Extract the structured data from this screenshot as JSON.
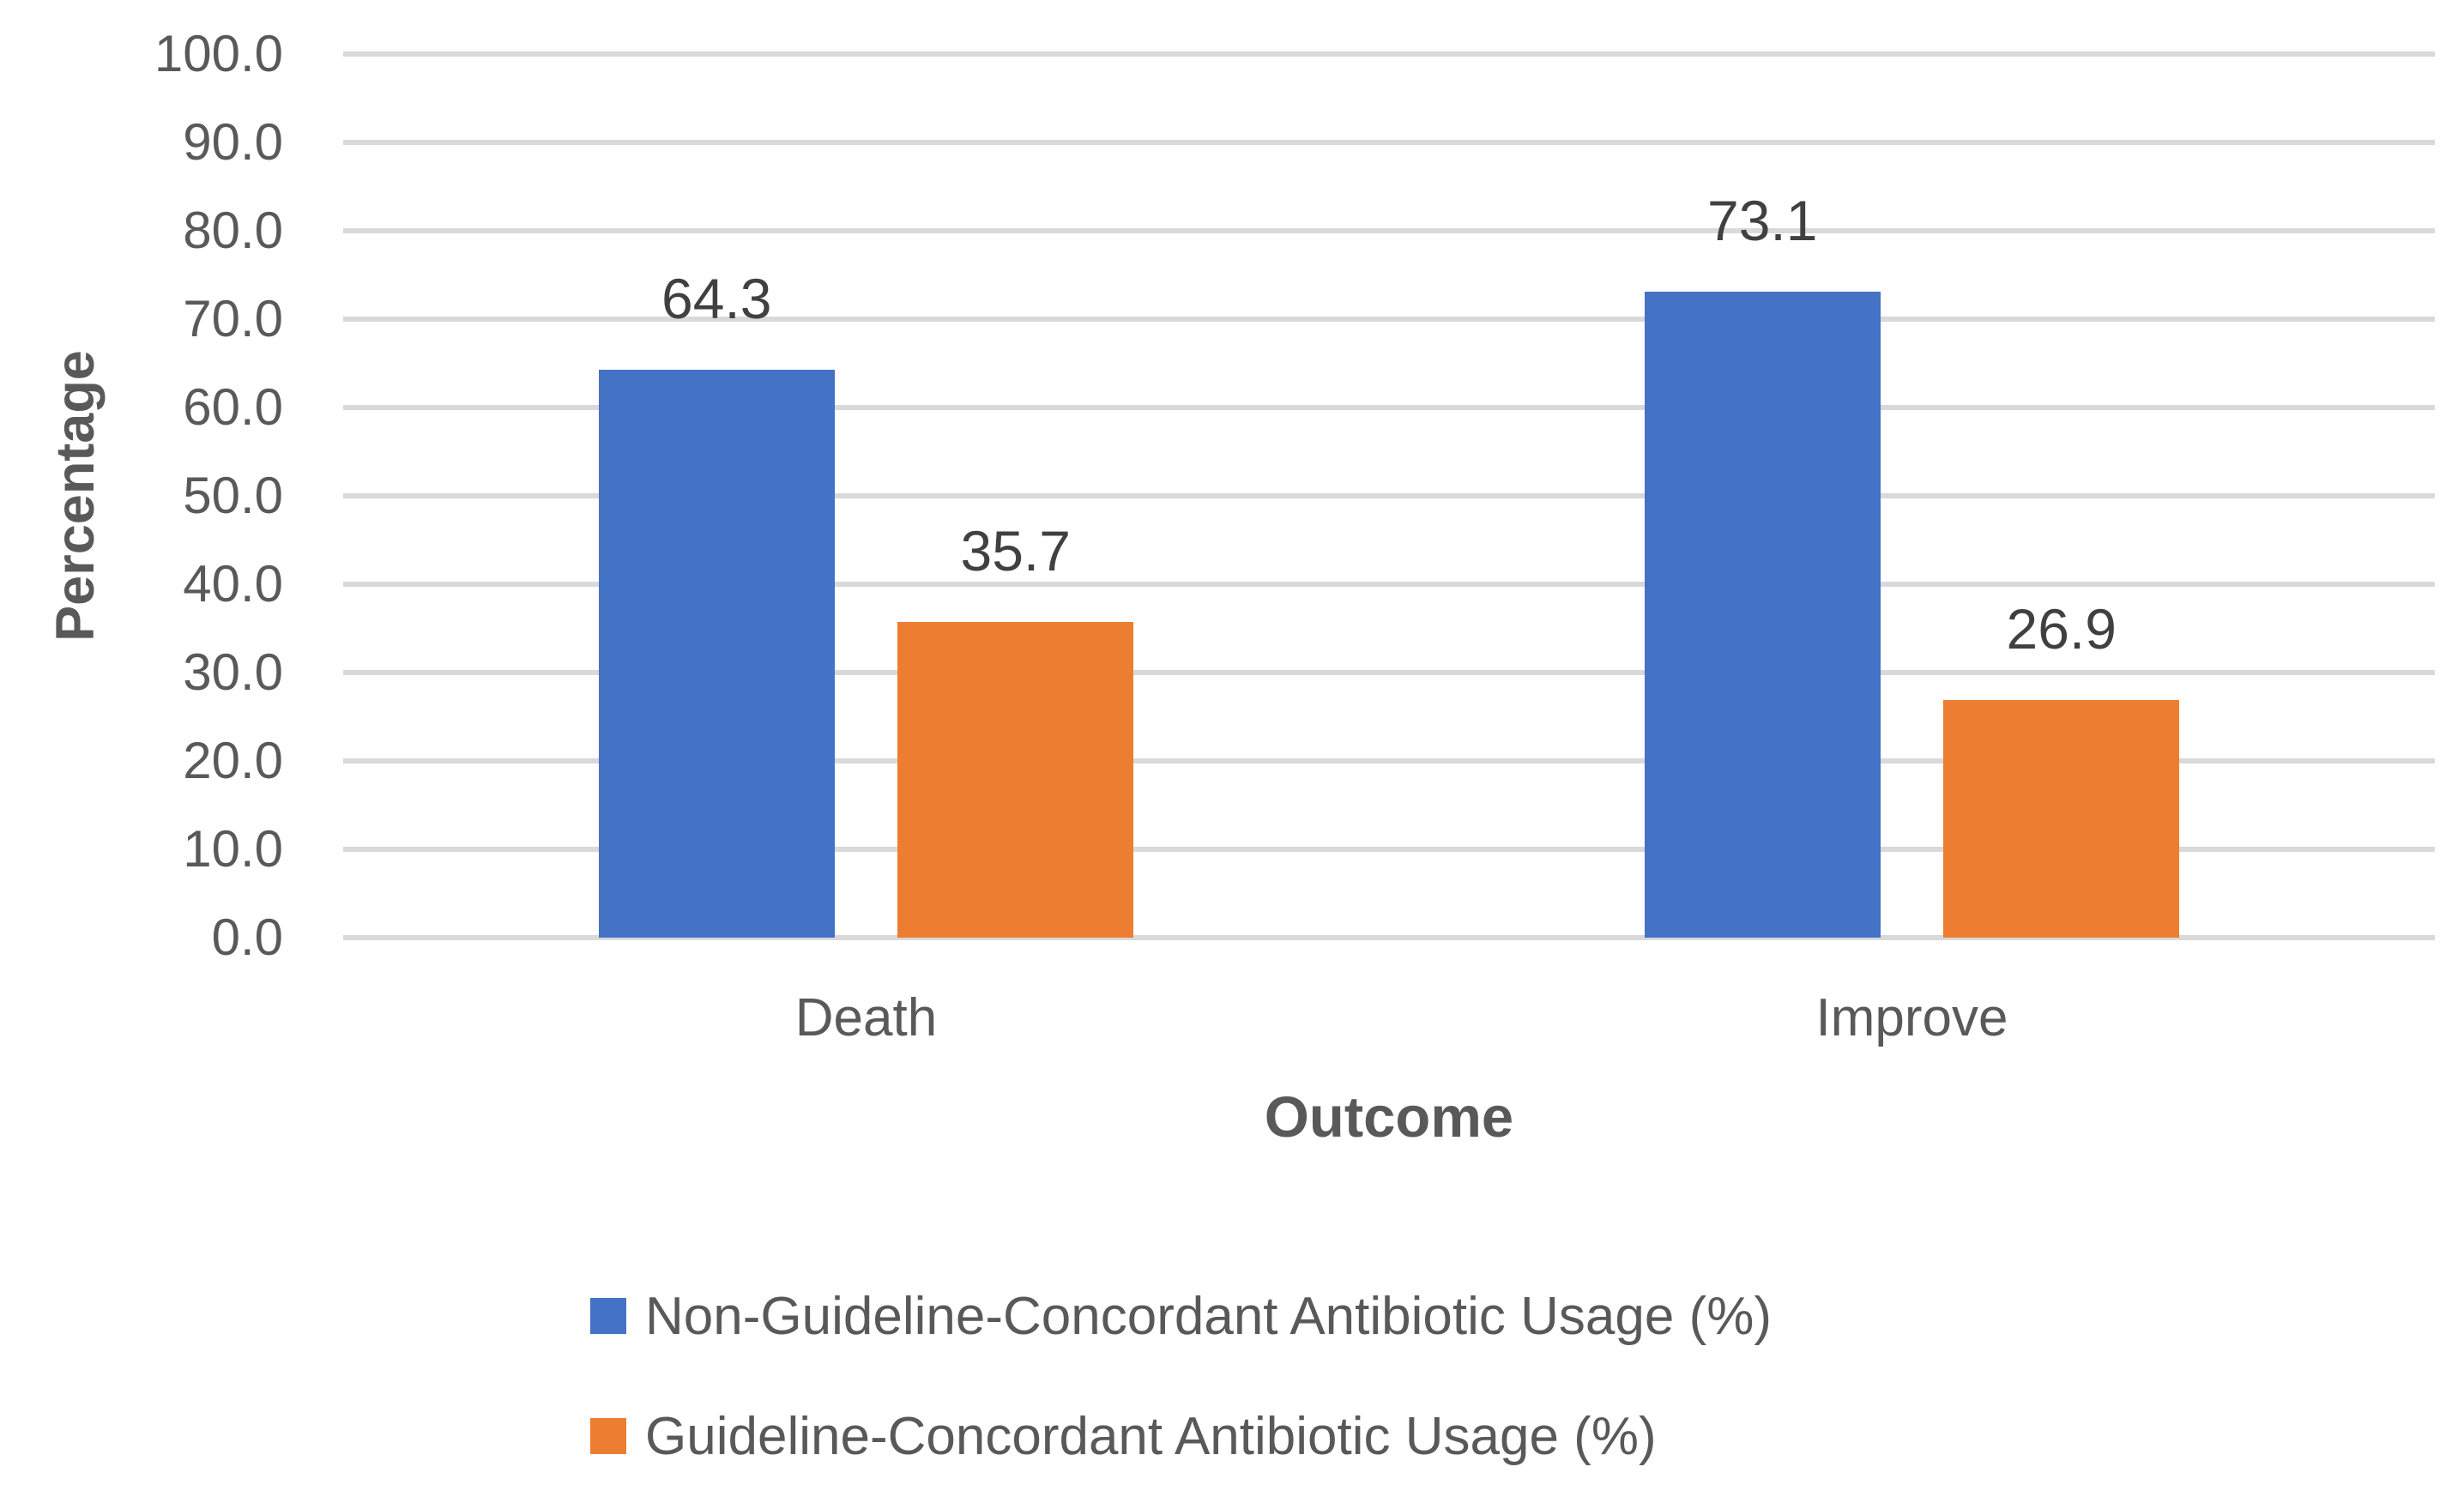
{
  "chart_data": {
    "type": "bar",
    "title": "",
    "categories": [
      "Death",
      "Improve"
    ],
    "series": [
      {
        "name": "Non-Guideline-Concordant Antibiotic Usage (%)",
        "color": "#4472C4",
        "values": [
          64.3,
          73.1
        ],
        "data_labels": [
          "64.3",
          "73.1"
        ]
      },
      {
        "name": "Guideline-Concordant Antibiotic Usage (%)",
        "color": "#ED7D31",
        "values": [
          35.7,
          26.9
        ],
        "data_labels": [
          "35.7",
          "26.9"
        ]
      }
    ],
    "xlabel": "Outcome",
    "ylabel": "Percentage",
    "ylim": [
      0,
      100
    ],
    "y_tick_step": 10,
    "y_tick_labels": [
      "0.0",
      "10.0",
      "20.0",
      "30.0",
      "40.0",
      "50.0",
      "60.0",
      "70.0",
      "80.0",
      "90.0",
      "100.0"
    ],
    "grid": "horizontal-only",
    "legend_position": "bottom"
  },
  "colors": {
    "background": "#FFFFFF",
    "gridline": "#D9D9D9",
    "axis_text": "#595959",
    "data_label_text": "#404040",
    "series_blue": "#4472C4",
    "series_orange": "#ED7D31"
  }
}
